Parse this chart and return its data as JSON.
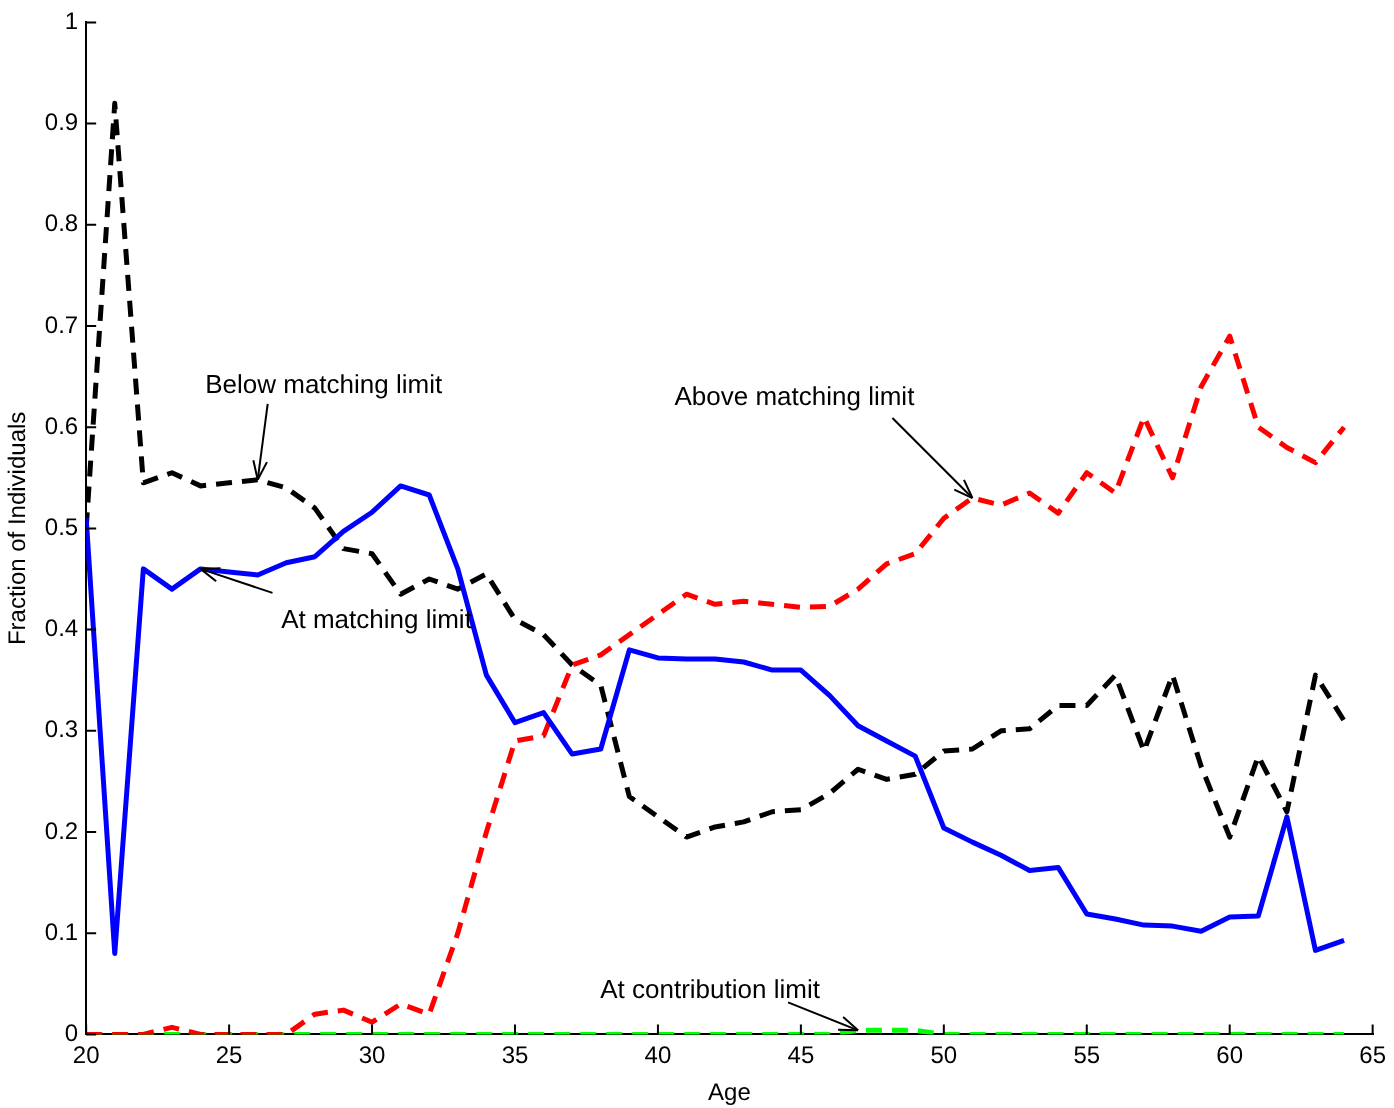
{
  "chart_data": {
    "type": "line",
    "xlabel": "Age",
    "ylabel": "Fraction of Individuals",
    "x": [
      20,
      21,
      22,
      23,
      24,
      25,
      26,
      27,
      28,
      29,
      30,
      31,
      32,
      33,
      34,
      35,
      36,
      37,
      38,
      39,
      40,
      41,
      42,
      43,
      44,
      45,
      46,
      47,
      48,
      49,
      50,
      51,
      52,
      53,
      54,
      55,
      56,
      57,
      58,
      59,
      60,
      61,
      62,
      63,
      64
    ],
    "xlim": [
      20,
      65
    ],
    "xticks": [
      20,
      25,
      30,
      35,
      40,
      45,
      50,
      55,
      60,
      65
    ],
    "ylim": [
      0,
      1
    ],
    "yticks": [
      0,
      0.1,
      0.2,
      0.3,
      0.4,
      0.5,
      0.6,
      0.7,
      0.8,
      0.9,
      1
    ],
    "grid": false,
    "legend": false,
    "marker": "none",
    "series": [
      {
        "color": "#0000ff",
        "line_style": "solid",
        "values": [
          0.51,
          0.08,
          0.46,
          0.44,
          0.46,
          0.457,
          0.454,
          0.466,
          0.472,
          0.497,
          0.516,
          0.542,
          0.533,
          0.46,
          0.355,
          0.308,
          0.318,
          0.277,
          0.282,
          0.38,
          0.372,
          0.371,
          0.371,
          0.368,
          0.36,
          0.36,
          0.335,
          0.305,
          0.29,
          0.275,
          0.204,
          0.19,
          0.177,
          0.162,
          0.165,
          0.119,
          0.114,
          0.108,
          0.107,
          0.102,
          0.116,
          0.117,
          0.215,
          0.083,
          0.093
        ]
      },
      {
        "color": "#ff0000",
        "line_style": "dashed",
        "values": [
          0,
          0,
          0,
          0.007,
          0,
          0,
          0,
          0,
          0.02,
          0.024,
          0.012,
          0.03,
          0.02,
          0.1,
          0.2,
          0.29,
          0.295,
          0.365,
          0.375,
          0.395,
          0.415,
          0.435,
          0.425,
          0.428,
          0.425,
          0.422,
          0.423,
          0.44,
          0.465,
          0.475,
          0.51,
          0.53,
          0.523,
          0.535,
          0.515,
          0.555,
          0.535,
          0.61,
          0.55,
          0.64,
          0.69,
          0.6,
          0.58,
          0.565,
          0.6
        ]
      },
      {
        "color": "#000000",
        "line_style": "dashed",
        "values": [
          0.5,
          0.92,
          0.545,
          0.555,
          0.542,
          0.545,
          0.548,
          0.54,
          0.52,
          0.48,
          0.475,
          0.435,
          0.45,
          0.44,
          0.455,
          0.41,
          0.395,
          0.365,
          0.345,
          0.235,
          0.215,
          0.195,
          0.205,
          0.21,
          0.22,
          0.222,
          0.238,
          0.262,
          0.252,
          0.257,
          0.28,
          0.282,
          0.3,
          0.302,
          0.325,
          0.325,
          0.355,
          0.28,
          0.355,
          0.265,
          0.195,
          0.275,
          0.22,
          0.355,
          0.31
        ]
      },
      {
        "color": "#00ff00",
        "line_style": "dashed",
        "values": [
          0,
          0,
          0,
          0,
          0,
          0,
          0,
          0,
          0,
          0,
          0,
          0,
          0,
          0,
          0,
          0,
          0,
          0,
          0,
          0,
          0,
          0,
          0,
          0,
          0,
          0,
          0,
          0.004,
          0.004,
          0.004,
          0,
          0,
          0,
          0,
          0,
          0,
          0,
          0,
          0,
          0,
          0,
          0,
          0,
          0,
          0
        ]
      }
    ],
    "annotations": [
      {
        "text": "Below matching limit",
        "x": 26,
        "y": 0.548
      },
      {
        "text": "Above matching limit",
        "x": 51,
        "y": 0.53
      },
      {
        "text": "At matching limit",
        "x": 24,
        "y": 0.46
      },
      {
        "text": "At contribution limit",
        "x": 47,
        "y": 0.004
      }
    ]
  }
}
